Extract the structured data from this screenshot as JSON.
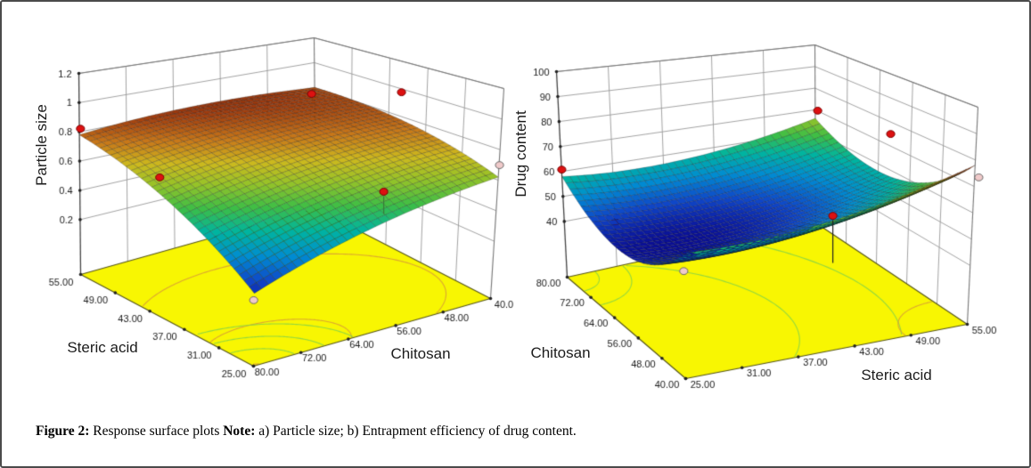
{
  "figure": {
    "caption": {
      "label": "Figure 2:",
      "text": "Response surface plots",
      "note_label": "Note:",
      "note_text": "a) Particle size; b) Entrapment efficiency of drug content."
    }
  },
  "chart_data": [
    {
      "type": "surface3d",
      "panel": "a",
      "response": "Particle size",
      "axes": {
        "z": {
          "label": "Particle size",
          "tick_values": [
            0.2,
            0.4,
            0.6,
            0.8,
            1,
            1.2
          ],
          "tick_labels": [
            "0.2",
            "0.4",
            "0.6",
            "0.8",
            "1",
            "1.2"
          ],
          "floor_value": -0.175,
          "top_value": 1.2
        },
        "x": {
          "label": "Chitosan",
          "range": [
            40,
            80
          ],
          "tick_values": [
            40,
            48,
            56,
            64,
            72,
            80
          ],
          "tick_labels": [
            "40.0",
            "48.00",
            "56.00",
            "64.00",
            "72.00",
            "80.00"
          ]
        },
        "y": {
          "label": "Steric acid",
          "range": [
            25,
            55
          ],
          "tick_values": [
            25,
            31,
            37,
            43,
            49,
            55
          ],
          "tick_labels": [
            "25.00",
            "31.00",
            "37.00",
            "43.00",
            "49.00",
            "55.00"
          ]
        }
      },
      "surface": {
        "corner_values": {
          "steric55_chitosan80": 0.78,
          "steric55_chitosan40": 0.8,
          "steric25_chitosan40": 0.62,
          "steric25_chitosan80": 0.24
        },
        "model_coded": {
          "b0": 0.71,
          "b_chitosan": -0.1,
          "b_steric": 0.18,
          "b_interaction": 0.09,
          "b_chitosan_sq": -0.04,
          "b_steric_sq": -0.06
        },
        "coded_note": "u=(chitosan-60)/20, v=(steric-40)/15",
        "color_range": [
          0.2,
          0.88
        ]
      },
      "design_points": {
        "above_color": "#dd1111",
        "below_color": "#f0caca",
        "above": [
          [
            0.119,
            0.309
          ],
          [
            0.574,
            0.224
          ],
          [
            0.751,
            0.22
          ],
          [
            0.275,
            0.428
          ],
          [
            0.716,
            0.463
          ]
        ],
        "below": [
          [
            0.944,
            0.398
          ],
          [
            0.46,
            0.728
          ]
        ]
      },
      "floor": {
        "color": "#f8f602",
        "contours": [
          {
            "c": [
              64,
              35
            ],
            "r": [
              23,
              13
            ],
            "color": "#d79a3a"
          },
          {
            "c": [
              73,
              28
            ],
            "r": [
              11,
              6
            ],
            "color": "#d79a3a"
          },
          {
            "c": [
              80,
              25
            ],
            "r": [
              7,
              4.2
            ],
            "color": "#82d24a"
          },
          {
            "c": [
              80,
              25
            ],
            "r": [
              12,
              7.2
            ],
            "color": "#82d24a"
          },
          {
            "c": [
              80,
              25
            ],
            "r": [
              17,
              10.2
            ],
            "color": "#82d24a"
          }
        ]
      }
    },
    {
      "type": "surface3d",
      "panel": "b",
      "response": "Drug content",
      "axes": {
        "z": {
          "label": "Drug content",
          "tick_values": [
            40,
            50,
            60,
            70,
            80,
            90,
            100
          ],
          "tick_labels": [
            "40",
            "50",
            "60",
            "70",
            "80",
            "90",
            "100"
          ],
          "floor_value": 17.7,
          "top_value": 100
        },
        "x": {
          "label": "Chitosan",
          "range": [
            40,
            80
          ],
          "tick_values": [
            40,
            48,
            56,
            64,
            72,
            80
          ],
          "tick_labels": [
            "40.00",
            "48.00",
            "56.00",
            "64.00",
            "72.00",
            "80.00"
          ]
        },
        "y": {
          "label": "Steric acid",
          "range": [
            25,
            55
          ],
          "tick_values": [
            25,
            31,
            37,
            43,
            49,
            55
          ],
          "tick_labels": [
            "25.00",
            "31.00",
            "37.00",
            "43.00",
            "49.00",
            "55.00"
          ]
        }
      },
      "surface": {
        "corner_values": {
          "steric25_chitosan80": 58,
          "steric55_chitosan80": 66,
          "steric25_chitosan40": 60,
          "steric55_chitosan40": 78
        },
        "model_coded": {
          "b0": 46,
          "b_chitosan": -3.5,
          "b_steric": 6.5,
          "b_interaction": -2.5,
          "b_chitosan_sq": 14.5,
          "b_steric_sq": 5
        },
        "coded_note": "u=(chitosan-60)/20, v=(steric-40)/15",
        "color_range": [
          44,
          79
        ]
      },
      "design_points": {
        "above_color": "#dd1111",
        "below_color": "#f0caca",
        "above": [
          [
            0.099,
            0.409
          ],
          [
            0.59,
            0.265
          ],
          [
            0.73,
            0.322
          ],
          [
            0.619,
            0.522
          ],
          [
            0.202,
            0.537
          ]
        ],
        "below": [
          [
            0.899,
            0.428
          ],
          [
            0.333,
            0.657
          ]
        ]
      },
      "floor": {
        "color": "#f8f602",
        "contours": [
          {
            "c": [
              80,
              25
            ],
            "r": [
              5.5,
              3.3
            ],
            "color": "#82d24a"
          },
          {
            "c": [
              80,
              25
            ],
            "r": [
              11,
              6.6
            ],
            "color": "#82d24a"
          },
          {
            "c": [
              57,
              21
            ],
            "r": [
              27,
              20
            ],
            "color": "#82d24a"
          },
          {
            "c": [
              57,
              21
            ],
            "r": [
              39,
              30
            ],
            "color": "#82d24a"
          },
          {
            "c": [
              40,
              55
            ],
            "r": [
              9,
              6.5
            ],
            "color": "#d79a3a"
          }
        ]
      }
    }
  ]
}
